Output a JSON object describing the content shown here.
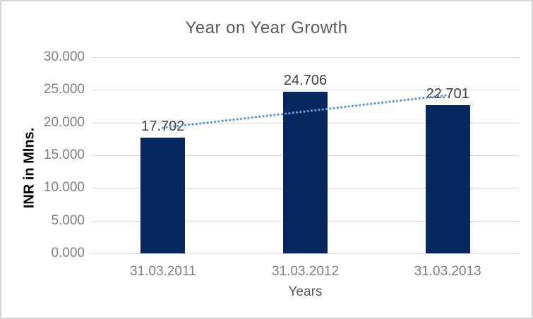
{
  "window": {
    "background": "#ffffff",
    "border_color": "#d4d4d4"
  },
  "chart_data": {
    "type": "bar",
    "title": "Year on Year Growth",
    "xlabel": "Years",
    "ylabel": "INR in Mlns.",
    "categories": [
      "31.03.2011",
      "31.03.2012",
      "31.03.2013"
    ],
    "values": [
      17.702,
      24.706,
      22.701
    ],
    "data_labels": [
      "17.702",
      "24.706",
      "22.701"
    ],
    "y_tick_values": [
      0,
      5,
      10,
      15,
      20,
      25,
      30
    ],
    "y_tick_labels": [
      "0.000",
      "5.000",
      "10.000",
      "15.000",
      "20.000",
      "25.000",
      "30.000"
    ],
    "ylim": [
      0,
      30
    ],
    "grid": true,
    "legend": "none",
    "bar_color": "#07275f",
    "trendline": {
      "type": "linear",
      "style": "dotted",
      "color": "#5b9bd5"
    },
    "colors": {
      "title": "#595959",
      "axis_ticks": "#7f7f7f",
      "data_label": "#404040",
      "x_axis_title": "#595959",
      "y_axis_title": "#000000",
      "gridline": "#d9d9d9"
    }
  }
}
